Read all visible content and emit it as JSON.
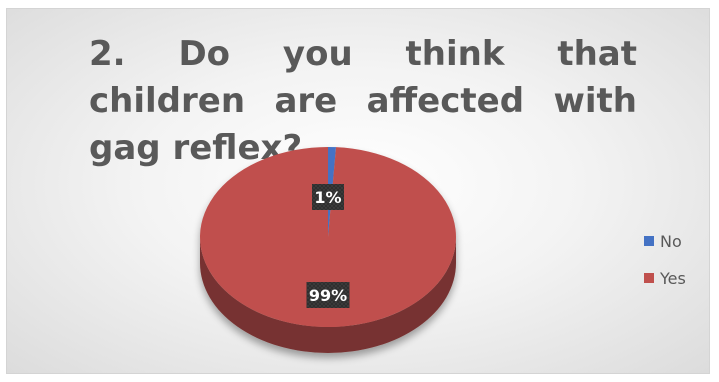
{
  "chart_data": {
    "type": "pie",
    "title": "2. Do you think that children are affected with gag reflex?",
    "categories": [
      "No",
      "Yes"
    ],
    "values": [
      1,
      99
    ],
    "data_labels": [
      "1%",
      "99%"
    ],
    "colors": [
      "#4472c4",
      "#c0504d"
    ],
    "legend_position": "right",
    "style": "3d"
  }
}
